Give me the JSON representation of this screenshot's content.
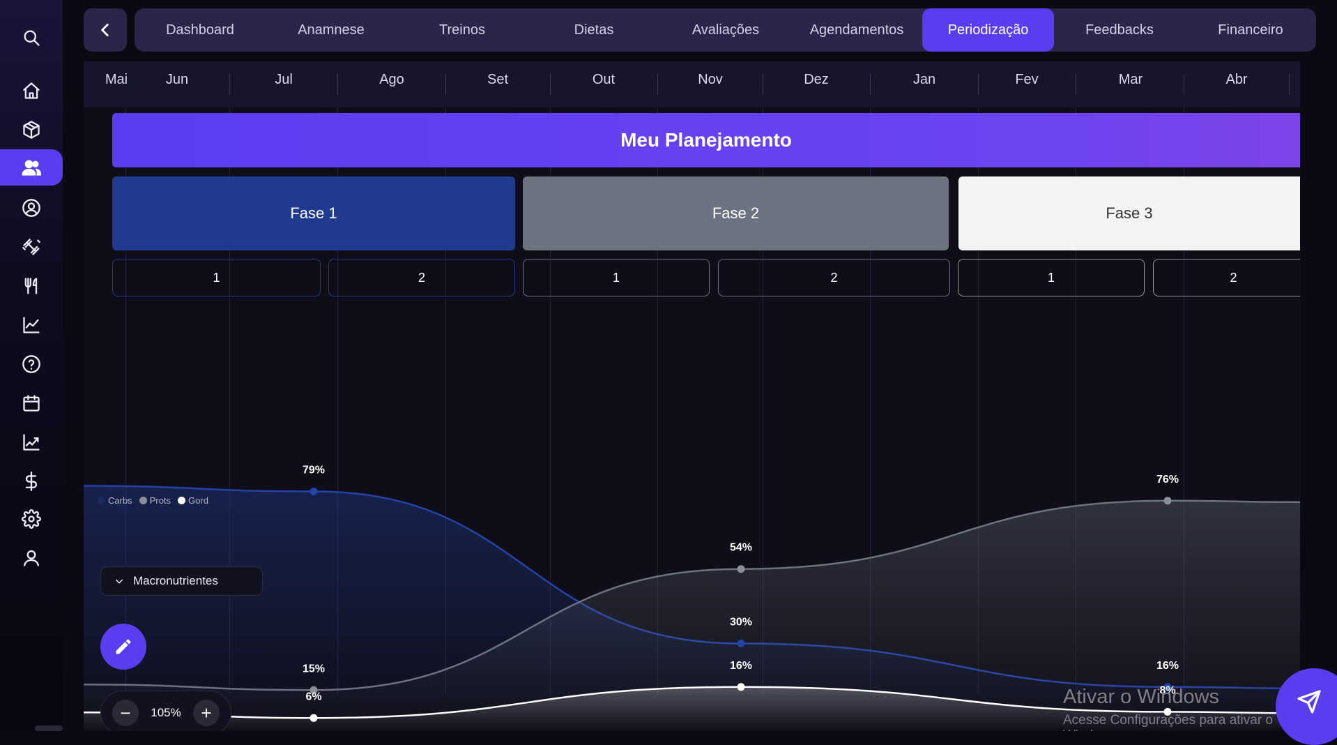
{
  "colors": {
    "accent": "#5b3df0",
    "carbs": "#2343a8",
    "prots": "#6c7280",
    "gord": "#ffffff"
  },
  "sidebar": {
    "items": [
      {
        "icon": "search-icon"
      },
      {
        "icon": "home-icon"
      },
      {
        "icon": "box-icon"
      },
      {
        "icon": "users-icon",
        "active": true
      },
      {
        "icon": "user-circle-icon"
      },
      {
        "icon": "dumbbell-icon"
      },
      {
        "icon": "fork-knife-icon"
      },
      {
        "icon": "line-chart-icon"
      },
      {
        "icon": "help-icon"
      },
      {
        "icon": "calendar-icon"
      },
      {
        "icon": "trend-icon"
      },
      {
        "icon": "dollar-icon"
      },
      {
        "icon": "gear-icon"
      },
      {
        "icon": "person-icon"
      }
    ]
  },
  "tabs": [
    "Dashboard",
    "Anamnese",
    "Treinos",
    "Dietas",
    "Avaliações",
    "Agendamentos",
    "Periodização",
    "Feedbacks",
    "Financeiro"
  ],
  "active_tab": "Periodização",
  "months": [
    "Mai",
    "Jun",
    "Jul",
    "Ago",
    "Set",
    "Out",
    "Nov",
    "Dez",
    "Jan",
    "Fev",
    "Mar",
    "Abr"
  ],
  "plan_title": "Meu Planejamento",
  "phases": [
    {
      "label": "Fase 1",
      "subs": [
        "1",
        "2"
      ]
    },
    {
      "label": "Fase 2",
      "subs": [
        "1",
        "2"
      ]
    },
    {
      "label": "Fase 3",
      "subs": [
        "1",
        "2"
      ]
    }
  ],
  "legend": [
    "Carbs",
    "Prots",
    "Gord"
  ],
  "macro_dropdown": "Macronutrientes",
  "zoom_level": "105%",
  "watermark": {
    "line1": "Ativar o Windows",
    "line2": "Acesse Configurações para ativar o Windows."
  },
  "chart_data": {
    "type": "line",
    "x": [
      "Fase 1",
      "Fase 2",
      "Fase 3"
    ],
    "series": [
      {
        "name": "Carbs",
        "values": [
          79,
          30,
          16
        ]
      },
      {
        "name": "Prots",
        "values": [
          15,
          54,
          76
        ]
      },
      {
        "name": "Gord",
        "values": [
          6,
          16,
          8
        ]
      }
    ],
    "unit": "%"
  }
}
